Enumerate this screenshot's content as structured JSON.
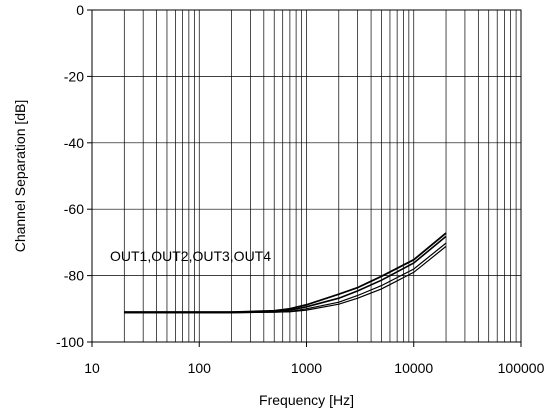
{
  "chart_data": {
    "type": "line",
    "title": "",
    "xlabel": "Frequency [Hz]",
    "ylabel": "Channel Separation [dB]",
    "x_scale": "log",
    "xlim": [
      10,
      100000
    ],
    "ylim": [
      -100,
      0
    ],
    "x_ticks": [
      10,
      100,
      1000,
      10000,
      100000
    ],
    "x_tick_labels": [
      "10",
      "100",
      "1000",
      "10000",
      "100000"
    ],
    "y_ticks": [
      0,
      -20,
      -40,
      -60,
      -80,
      -100
    ],
    "y_tick_labels": [
      "0",
      "-20",
      "-40",
      "-60",
      "-80",
      "-100"
    ],
    "grid": true,
    "annotation": "OUT1,OUT2,OUT3,OUT4",
    "series": [
      {
        "x": [
          20,
          50,
          100,
          200,
          500,
          700,
          1000,
          2000,
          3000,
          5000,
          10000,
          20000
        ],
        "y": [
          -91,
          -91,
          -91,
          -91,
          -90.6,
          -90,
          -88.8,
          -85.6,
          -83.6,
          -80.2,
          -75.2,
          -67.2
        ]
      },
      {
        "x": [
          20,
          50,
          100,
          200,
          500,
          700,
          1000,
          2000,
          3000,
          5000,
          10000,
          20000
        ],
        "y": [
          -91,
          -91,
          -91,
          -91,
          -90.8,
          -90.4,
          -89.4,
          -86.8,
          -84.6,
          -81.4,
          -76.2,
          -68.2
        ]
      },
      {
        "x": [
          20,
          50,
          100,
          200,
          500,
          700,
          1000,
          2000,
          3000,
          5000,
          10000,
          20000
        ],
        "y": [
          -91.2,
          -91.2,
          -91.2,
          -91.2,
          -91,
          -90.8,
          -90,
          -88,
          -86,
          -83,
          -78,
          -70.2
        ]
      },
      {
        "x": [
          20,
          50,
          100,
          200,
          500,
          700,
          1000,
          2000,
          3000,
          5000,
          10000,
          20000
        ],
        "y": [
          -91.2,
          -91.2,
          -91.2,
          -91.2,
          -91,
          -90.9,
          -90.4,
          -88.6,
          -86.8,
          -84,
          -79,
          -71.2
        ]
      }
    ]
  }
}
